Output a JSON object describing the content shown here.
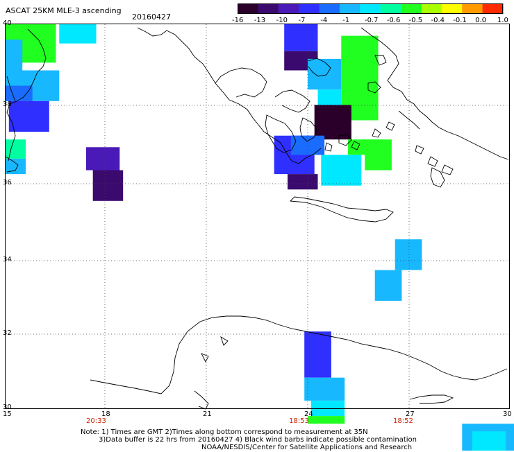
{
  "header": {
    "title": "ASCAT 25KM MLE-3 ascending",
    "date": "20160427"
  },
  "colorbar": {
    "labels": [
      "-16",
      "-13",
      "-10",
      "-7",
      "-4",
      "-1",
      "-0.7",
      "-0.6",
      "-0.5",
      "-0.4",
      "-0.1",
      "0.0",
      "1.0"
    ],
    "colors": [
      "#2a002a",
      "#3a0a6e",
      "#4a1ab8",
      "#2f2fff",
      "#1a6cff",
      "#18b8ff",
      "#00e8ff",
      "#00ffa0",
      "#20ff20",
      "#a8ff00",
      "#ffff00",
      "#ff9a00",
      "#ff2a00"
    ]
  },
  "axes": {
    "lat_labels": [
      "40",
      "38",
      "36",
      "34",
      "32",
      "30"
    ],
    "lon_labels": [
      "15",
      "18",
      "21",
      "24",
      "27",
      "30"
    ],
    "time_labels": [
      "20:33",
      "18:53",
      "18:52"
    ]
  },
  "notes": {
    "line1": "Note: 1) Times are GMT 2)Times along bottom correspond to measurement at 35N",
    "line2": "3)Data buffer is 22 hrs from 20160427 4) Black wind barbs indicate possible contamination",
    "line3": "NOAA/NESDIS/Center for Satellite Applications and Research"
  },
  "map_data": {
    "cells": [
      {
        "lon": 15.0,
        "lat": 39.0,
        "w": 1.5,
        "h": 1.0,
        "color": "#20ff20"
      },
      {
        "lon": 15.5,
        "lat": 39.5,
        "w": 1.0,
        "h": 0.5,
        "color": "#20ff20"
      },
      {
        "lon": 16.6,
        "lat": 39.5,
        "w": 1.1,
        "h": 0.5,
        "color": "#00e8ff"
      },
      {
        "lon": 15.0,
        "lat": 38.8,
        "w": 0.5,
        "h": 0.8,
        "color": "#18b8ff"
      },
      {
        "lon": 15.0,
        "lat": 38.0,
        "w": 1.6,
        "h": 0.8,
        "color": "#18b8ff"
      },
      {
        "lon": 15.0,
        "lat": 38.0,
        "w": 0.8,
        "h": 0.4,
        "color": "#1a6cff"
      },
      {
        "lon": 15.1,
        "lat": 37.2,
        "w": 1.2,
        "h": 0.8,
        "color": "#2f2fff"
      },
      {
        "lon": 15.0,
        "lat": 36.5,
        "w": 0.6,
        "h": 0.5,
        "color": "#00ffa0"
      },
      {
        "lon": 15.0,
        "lat": 36.1,
        "w": 0.6,
        "h": 0.4,
        "color": "#18b8ff"
      },
      {
        "lon": 17.4,
        "lat": 36.2,
        "w": 1.0,
        "h": 0.6,
        "color": "#4a1ab8"
      },
      {
        "lon": 17.6,
        "lat": 35.4,
        "w": 0.9,
        "h": 0.8,
        "color": "#3a0a6e"
      },
      {
        "lon": 23.3,
        "lat": 39.3,
        "w": 1.0,
        "h": 0.7,
        "color": "#2f2fff"
      },
      {
        "lon": 23.3,
        "lat": 38.8,
        "w": 1.0,
        "h": 0.5,
        "color": "#3a0a6e"
      },
      {
        "lon": 24.0,
        "lat": 38.3,
        "w": 1.0,
        "h": 0.8,
        "color": "#18b8ff"
      },
      {
        "lon": 24.3,
        "lat": 37.5,
        "w": 0.7,
        "h": 0.8,
        "color": "#00e8ff"
      },
      {
        "lon": 25.0,
        "lat": 37.5,
        "w": 1.1,
        "h": 2.2,
        "color": "#20ff20"
      },
      {
        "lon": 24.2,
        "lat": 37.0,
        "w": 1.1,
        "h": 0.9,
        "color": "#2a002a"
      },
      {
        "lon": 25.2,
        "lat": 36.6,
        "w": 0.9,
        "h": 0.4,
        "color": "#20ff20"
      },
      {
        "lon": 25.7,
        "lat": 36.2,
        "w": 0.8,
        "h": 0.8,
        "color": "#20ff20"
      },
      {
        "lon": 24.4,
        "lat": 35.8,
        "w": 1.2,
        "h": 0.8,
        "color": "#00e8ff"
      },
      {
        "lon": 23.0,
        "lat": 36.1,
        "w": 1.2,
        "h": 1.0,
        "color": "#2f2fff"
      },
      {
        "lon": 23.4,
        "lat": 35.7,
        "w": 0.9,
        "h": 0.4,
        "color": "#3a0a6e"
      },
      {
        "lon": 23.5,
        "lat": 36.6,
        "w": 1.0,
        "h": 0.5,
        "color": "#1a6cff"
      },
      {
        "lon": 26.6,
        "lat": 33.6,
        "w": 0.8,
        "h": 0.8,
        "color": "#18b8ff"
      },
      {
        "lon": 26.0,
        "lat": 32.8,
        "w": 0.8,
        "h": 0.8,
        "color": "#18b8ff"
      },
      {
        "lon": 23.9,
        "lat": 30.8,
        "w": 0.8,
        "h": 1.2,
        "color": "#2f2fff"
      },
      {
        "lon": 23.9,
        "lat": 30.2,
        "w": 1.2,
        "h": 0.6,
        "color": "#18b8ff"
      },
      {
        "lon": 24.1,
        "lat": 29.8,
        "w": 1.0,
        "h": 0.4,
        "color": "#00e8ff"
      },
      {
        "lon": 24.0,
        "lat": 29.6,
        "w": 1.1,
        "h": 0.2,
        "color": "#20ff20"
      },
      {
        "lon": 28.6,
        "lat": 28.6,
        "w": 1.6,
        "h": 1.0,
        "color": "#18b8ff"
      },
      {
        "lon": 28.9,
        "lat": 28.8,
        "w": 1.0,
        "h": 0.6,
        "color": "#00e8ff"
      }
    ]
  }
}
